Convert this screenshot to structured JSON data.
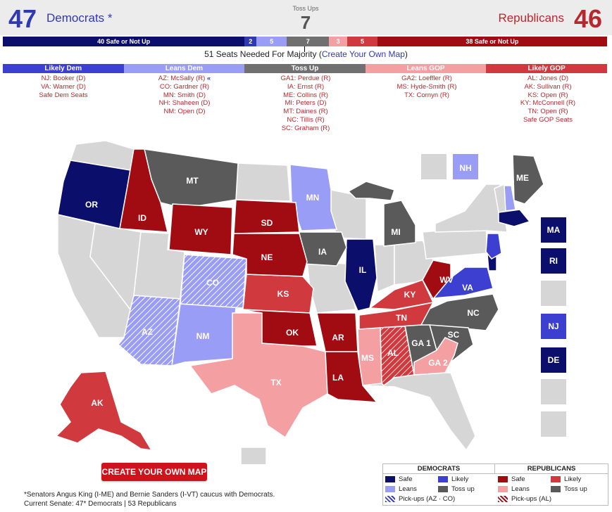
{
  "header": {
    "dem_seats": "47",
    "dem_label": "Democrats *",
    "rep_seats": "46",
    "rep_label": "Republicans",
    "tossup_label": "Toss Ups",
    "tossup_count": "7"
  },
  "seat_bar": [
    {
      "label": "40 Safe or Not Up",
      "value": 40,
      "color": "#0b0f6b"
    },
    {
      "label": "2",
      "value": 2,
      "color": "#2f3ab2"
    },
    {
      "label": "5",
      "value": 5,
      "color": "#9a9df5"
    },
    {
      "label": "7",
      "value": 7,
      "color": "#707070"
    },
    {
      "label": "3",
      "value": 3,
      "color": "#f4a0a2"
    },
    {
      "label": "5",
      "value": 5,
      "color": "#d03a3e"
    },
    {
      "label": "38 Safe or Not Up",
      "value": 38,
      "color": "#a00c12"
    }
  ],
  "majority": {
    "text": "51 Seats Needed For Majority (",
    "link": "Create Your Own Map",
    "close": ")"
  },
  "categories": [
    {
      "label": "Likely Dem",
      "color": "#3c3fd0",
      "races": [
        "NJ: Booker (D)",
        "VA: Warner (D)",
        "Safe Dem Seats"
      ]
    },
    {
      "label": "Leans Dem",
      "color": "#9a9df5",
      "races": [
        "AZ: McSally (R)",
        "CO: Gardner (R)",
        "MN: Smith (D)",
        "NH: Shaheen (D)",
        "NM: Open (D)"
      ]
    },
    {
      "label": "Toss Up",
      "color": "#707070",
      "races": [
        "GA1: Perdue (R)",
        "IA: Ernst (R)",
        "ME: Collins (R)",
        "MI: Peters (D)",
        "MT: Daines (R)",
        "NC: Tillis (R)",
        "SC: Graham (R)"
      ]
    },
    {
      "label": "Leans GOP",
      "color": "#f4a0a2",
      "races": [
        "GA2: Loeffler (R)",
        "MS: Hyde-Smith (R)",
        "TX: Cornyn (R)"
      ]
    },
    {
      "label": "Likely GOP",
      "color": "#d03a3e",
      "races": [
        "AL: Jones (D)",
        "AK: Sullivan (R)",
        "KS: Open (R)",
        "KY: McConnell (R)",
        "TN: Open (R)",
        "Safe GOP Seats"
      ]
    }
  ],
  "race_marker": "«",
  "colors": {
    "safe_dem": "#0b0f6b",
    "likely_dem": "#3c3fd0",
    "leans_dem": "#9a9df5",
    "tossup": "#5a5a5a",
    "leans_gop": "#f4a0a2",
    "likely_gop": "#d03a3e",
    "safe_gop": "#a00c12",
    "not_up": "#d6d6d6"
  },
  "map": {
    "state_labels": [
      "OR",
      "ID",
      "MT",
      "WY",
      "SD",
      "NE",
      "CO",
      "AZ",
      "NM",
      "TX",
      "KS",
      "OK",
      "AR",
      "LA",
      "MN",
      "IA",
      "IL",
      "MI",
      "KY",
      "TN",
      "WV",
      "VA",
      "NC",
      "SC",
      "GA 1",
      "GA 2",
      "AL",
      "MS",
      "ME",
      "AK",
      "NH"
    ],
    "side_boxes": [
      "MA",
      "RI",
      "",
      "NJ",
      "DE",
      "",
      ""
    ]
  },
  "button": "CREATE YOUR OWN MAP",
  "legend": {
    "dem_header": "DEMOCRATS",
    "rep_header": "REPUBLICANS",
    "dem_items": [
      "Safe",
      "Likely",
      "Leans",
      "Pick-ups (AZ · CO)"
    ],
    "dem_tossup": "Toss up",
    "rep_items": [
      "Safe",
      "Likely",
      "Leans",
      "Pick-ups (AL)"
    ],
    "rep_tossup": "Toss up"
  },
  "footnote": {
    "line1": "*Senators Angus King (I-ME) and Bernie Sanders (I-VT) caucus with Democrats.",
    "line2": "Current Senate: 47* Democrats | 53 Republicans"
  }
}
